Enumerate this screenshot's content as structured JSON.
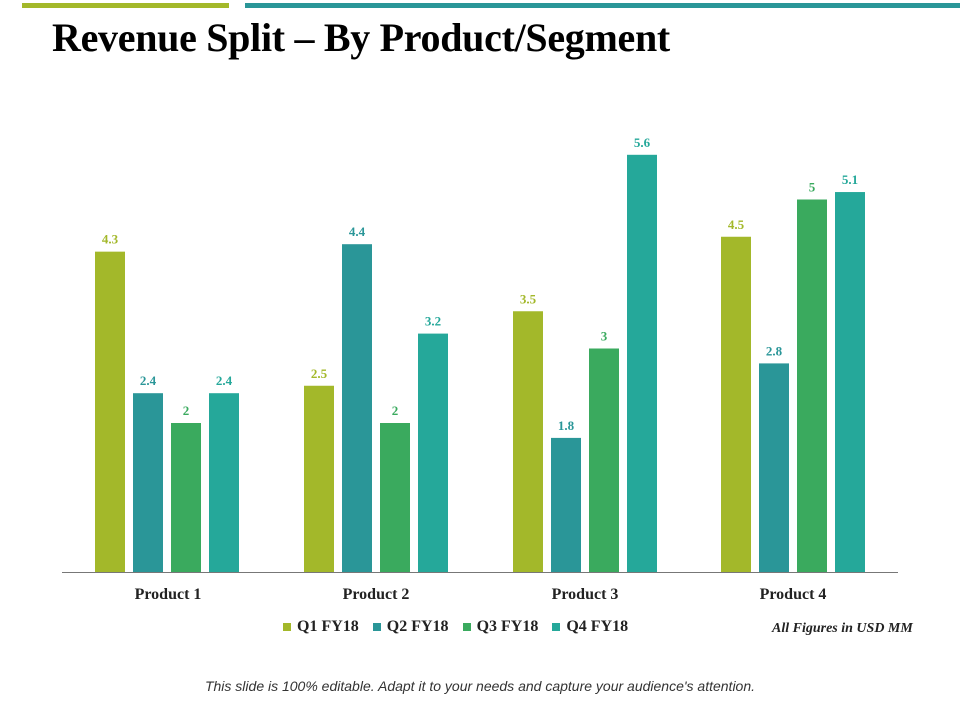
{
  "title": "Revenue Split – By Product/Segment",
  "colors": {
    "accent_left": "#a3b82a",
    "accent_right": "#2a9698"
  },
  "note": "All Figures in USD MM",
  "footer": "This slide is 100% editable. Adapt it to your needs and capture your audience's attention.",
  "legend": [
    {
      "label": "Q1 FY18",
      "color": "#a3b82a"
    },
    {
      "label": "Q2 FY18",
      "color": "#2a9698"
    },
    {
      "label": "Q3 FY18",
      "color": "#3aaa5e"
    },
    {
      "label": "Q4 FY18",
      "color": "#25a89a"
    }
  ],
  "chart_data": {
    "type": "bar",
    "categories": [
      "Product 1",
      "Product 2",
      "Product 3",
      "Product 4"
    ],
    "series": [
      {
        "name": "Q1 FY18",
        "color": "#a3b82a",
        "values": [
          4.3,
          2.5,
          3.5,
          4.5
        ]
      },
      {
        "name": "Q2 FY18",
        "color": "#2a9698",
        "values": [
          2.4,
          4.4,
          1.8,
          2.8
        ]
      },
      {
        "name": "Q3 FY18",
        "color": "#3aaa5e",
        "values": [
          2,
          2,
          3,
          5
        ]
      },
      {
        "name": "Q4 FY18",
        "color": "#25a89a",
        "values": [
          2.4,
          3.2,
          5.6,
          5.1
        ]
      }
    ],
    "ylim": [
      0,
      5.6
    ],
    "grid": false,
    "legend_position": "bottom",
    "data_labels": true
  }
}
